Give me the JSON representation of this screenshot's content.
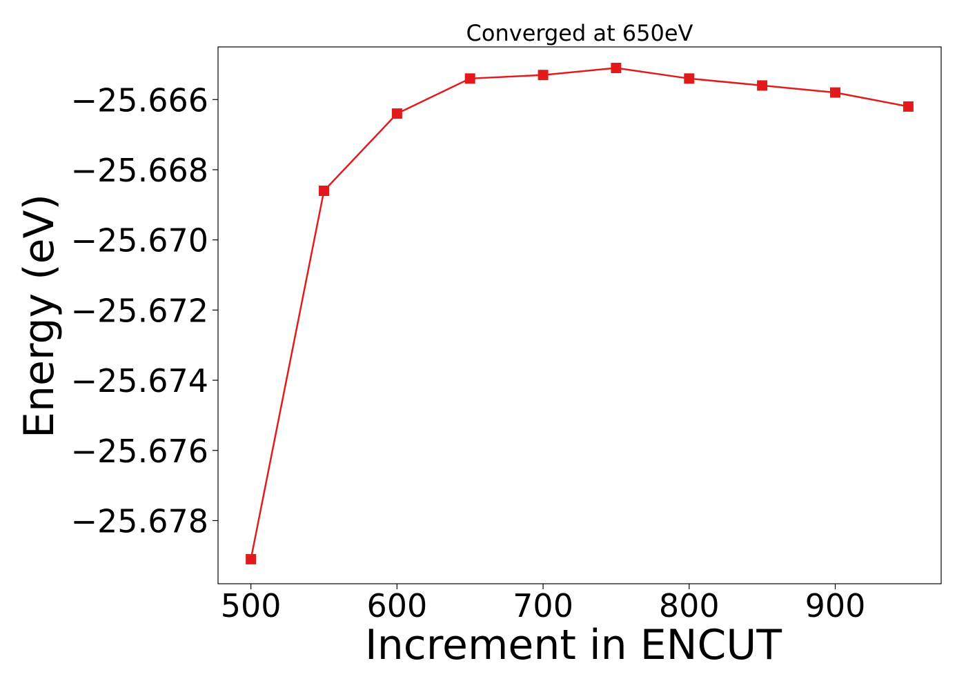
{
  "chart_data": {
    "type": "line",
    "title": "Converged at 650eV",
    "xlabel": "Increment in ENCUT",
    "ylabel": "Energy (eV)",
    "x": [
      500,
      550,
      600,
      650,
      700,
      750,
      800,
      850,
      900,
      950
    ],
    "series": [
      {
        "values": [
          -25.6791,
          -25.6686,
          -25.6664,
          -25.6654,
          -25.6653,
          -25.6651,
          -25.6654,
          -25.6656,
          -25.6658,
          -25.6662
        ],
        "color": "#e31a1c",
        "marker": "square"
      }
    ],
    "xlim": [
      477.5,
      972.5
    ],
    "ylim": [
      -25.6798,
      -25.6645
    ],
    "x_ticks": [
      500,
      600,
      700,
      800,
      900
    ],
    "x_tick_labels": [
      "500",
      "600",
      "700",
      "800",
      "900"
    ],
    "y_ticks": [
      -25.678,
      -25.676,
      -25.674,
      -25.672,
      -25.67,
      -25.668,
      -25.666
    ],
    "y_tick_labels": [
      "−25.678",
      "−25.676",
      "−25.674",
      "−25.672",
      "−25.670",
      "−25.668",
      "−25.666"
    ],
    "grid": false,
    "legend": "none"
  }
}
